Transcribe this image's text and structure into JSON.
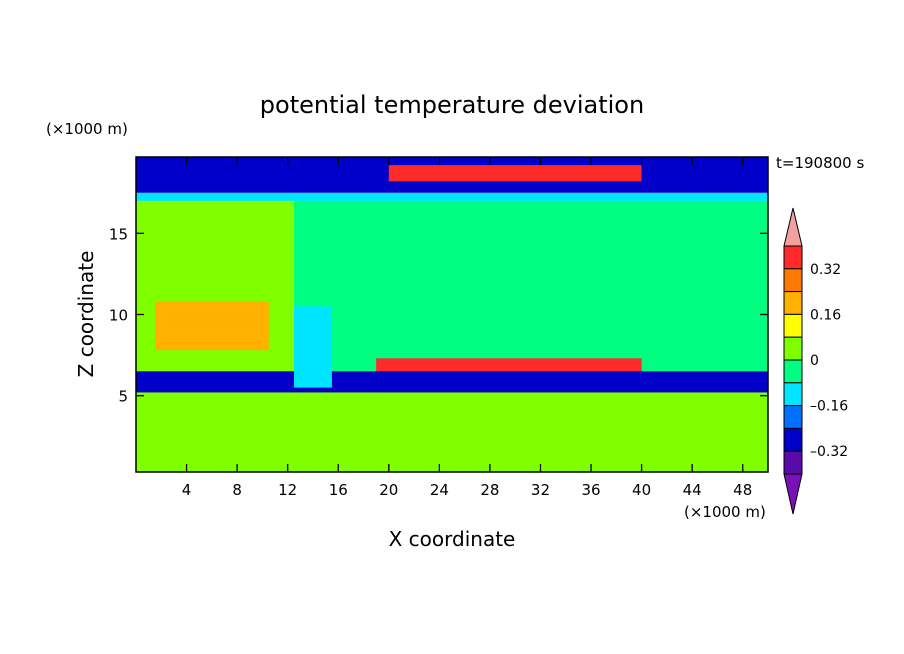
{
  "chart_data": {
    "type": "heatmap",
    "title": "potential temperature deviation",
    "xlabel": "X coordinate",
    "ylabel": "Z coordinate",
    "x_unit": "(×1000 m)",
    "y_unit": "(×1000 m)",
    "time_label": "t=190800 s",
    "xlim": [
      0,
      50
    ],
    "ylim": [
      0.3,
      19.7
    ],
    "x_ticks": [
      4,
      8,
      12,
      16,
      20,
      24,
      28,
      32,
      36,
      40,
      44,
      48
    ],
    "y_ticks": [
      5,
      10,
      15
    ],
    "colorbar": {
      "levels": [
        -0.4,
        -0.32,
        -0.24,
        -0.16,
        -0.08,
        0,
        0.08,
        0.16,
        0.24,
        0.32,
        0.4
      ],
      "tick_labels": [
        "0.32",
        "0.16",
        "0",
        "–0.16",
        "–0.32"
      ],
      "tick_values": [
        0.32,
        0.16,
        0,
        -0.16,
        -0.32
      ],
      "colors_top_to_bottom": [
        "#f5a0a0",
        "#ff2a2a",
        "#ff7a00",
        "#ffb000",
        "#ffff00",
        "#80ff00",
        "#00ff80",
        "#00e5ff",
        "#0070ff",
        "#0000c8",
        "#5a0aa8",
        "#7a10b8"
      ],
      "extend": "both"
    },
    "regions": [
      {
        "x": [
          0,
          50
        ],
        "z": [
          0.3,
          6.3
        ],
        "value": 0.0
      },
      {
        "x": [
          0,
          50
        ],
        "z": [
          6.3,
          17.2
        ],
        "value": 0.04
      },
      {
        "x": [
          12.5,
          50
        ],
        "z": [
          6.3,
          17.2
        ],
        "value": -0.02
      },
      {
        "x": [
          0,
          50
        ],
        "z": [
          17.0,
          17.5
        ],
        "value": -0.1
      },
      {
        "x": [
          0,
          50
        ],
        "z": [
          17.5,
          19.7
        ],
        "value": -0.3
      },
      {
        "x": [
          19,
          40
        ],
        "z": [
          5.2,
          7.3
        ],
        "value": 0.38
      },
      {
        "x": [
          20,
          40
        ],
        "z": [
          18.2,
          19.2
        ],
        "value": 0.38
      },
      {
        "x": [
          1.5,
          10.5
        ],
        "z": [
          7.8,
          10.8
        ],
        "value": 0.16
      },
      {
        "x": [
          0,
          50
        ],
        "z": [
          5.2,
          6.5
        ],
        "value": -0.3
      },
      {
        "x": [
          12.5,
          15.5
        ],
        "z": [
          5.5,
          10.5
        ],
        "value": -0.1
      }
    ]
  }
}
